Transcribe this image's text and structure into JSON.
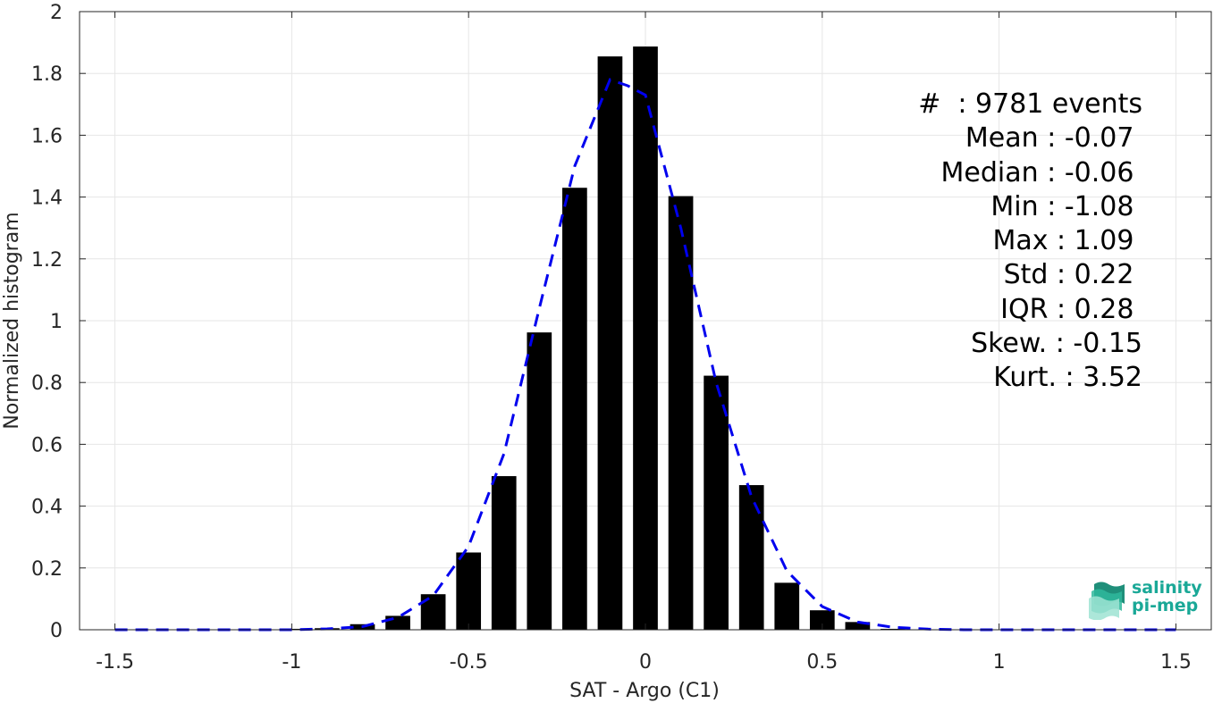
{
  "chart_data": {
    "type": "bar",
    "xlabel": "SAT - Argo (C1)",
    "ylabel": "Normalized histogram",
    "xlim": [
      -1.6,
      1.6
    ],
    "ylim": [
      0,
      2
    ],
    "x_ticks": [
      "-1.5",
      "-1",
      "-0.5",
      "0",
      "0.5",
      "1",
      "1.5"
    ],
    "y_ticks": [
      "0",
      "0.2",
      "0.4",
      "0.6",
      "0.8",
      "1",
      "1.2",
      "1.4",
      "1.6",
      "1.8",
      "2"
    ],
    "grid": true,
    "bar_width": 0.07,
    "bars": {
      "x": [
        -1.0,
        -0.9,
        -0.8,
        -0.7,
        -0.6,
        -0.5,
        -0.4,
        -0.3,
        -0.2,
        -0.1,
        0.0,
        0.1,
        0.2,
        0.3,
        0.4,
        0.5,
        0.6,
        0.7,
        0.8,
        0.9,
        1.0,
        1.1
      ],
      "values": [
        0.003,
        0.005,
        0.018,
        0.045,
        0.115,
        0.25,
        0.497,
        0.962,
        1.43,
        1.855,
        1.887,
        1.403,
        0.822,
        0.468,
        0.152,
        0.063,
        0.025,
        0.003,
        0.001,
        0.0,
        0.0,
        0.001
      ]
    },
    "fit_curve": {
      "style": "dashed",
      "color": "#0000ee",
      "x": [
        -1.5,
        -1.4,
        -1.3,
        -1.2,
        -1.1,
        -1.0,
        -0.9,
        -0.8,
        -0.7,
        -0.6,
        -0.5,
        -0.4,
        -0.3,
        -0.2,
        -0.1,
        -0.05,
        0.0,
        0.1,
        0.2,
        0.3,
        0.4,
        0.5,
        0.6,
        0.7,
        0.8,
        0.9,
        1.0,
        1.1,
        1.2,
        1.3,
        1.4,
        1.5
      ],
      "y": [
        0.0,
        0.0,
        0.0,
        0.0,
        0.0,
        0.0,
        0.003,
        0.01,
        0.04,
        0.11,
        0.27,
        0.57,
        1.04,
        1.5,
        1.78,
        1.76,
        1.73,
        1.3,
        0.8,
        0.43,
        0.19,
        0.075,
        0.025,
        0.008,
        0.002,
        0.0,
        0.0,
        0.0,
        0.0,
        0.0,
        0.0,
        0.0
      ]
    }
  },
  "stats": [
    "#  : 9781 events",
    "Mean : -0.07 ",
    "Median : -0.06 ",
    "Min : -1.08 ",
    "Max : 1.09 ",
    "Std : 0.22 ",
    "IQR : 0.28 ",
    "Skew. : -0.15",
    "Kurt. : 3.52"
  ],
  "logo": {
    "line1": "salinity",
    "line2": "pi-mep"
  },
  "colors": {
    "bars": "#000000",
    "fit": "#0000ee",
    "logo": "#1aa897",
    "grid": "#e6e6e6"
  }
}
